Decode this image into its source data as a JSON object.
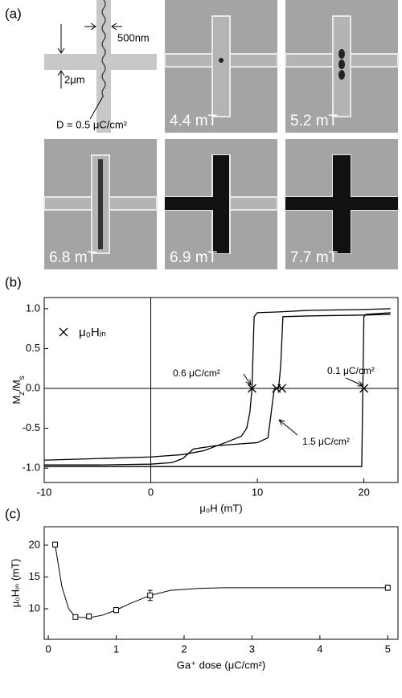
{
  "panel_a": {
    "label": "(a)",
    "width_label": "500nm",
    "spacing_label": "2μm",
    "dose_label": "D = 0.5 μC/cm²",
    "images": [
      "4.4 mT",
      "5.2 mT",
      "6.8 mT",
      "6.9 mT",
      "7.7 mT"
    ]
  },
  "chart_data": [
    {
      "type": "line",
      "title": "(b)",
      "xlabel": "μ₀H (mT)",
      "ylabel": [
        "M",
        "z",
        "/M",
        "s"
      ],
      "xlim": [
        -10,
        23.2
      ],
      "ylim": [
        -1.18,
        1.14
      ],
      "xticks": [
        -10,
        0,
        10,
        20
      ],
      "yticks": [
        {
          "value": -1,
          "label": "-1.0"
        },
        {
          "value": -0.5,
          "label": "-0.5"
        },
        {
          "value": 0,
          "label": "0.0"
        },
        {
          "value": 0.5,
          "label": "0.5"
        },
        {
          "value": 1,
          "label": "1.0"
        }
      ],
      "series": [
        {
          "name": "0.6 μC/cm²",
          "color": "#000000",
          "x": [
            -10,
            -5,
            0,
            3,
            5,
            7,
            8.5,
            9,
            9.3,
            9.5,
            9.7,
            10,
            12,
            15,
            20,
            22.5
          ],
          "values": [
            -0.9,
            -0.88,
            -0.86,
            -0.83,
            -0.78,
            -0.68,
            -0.6,
            -0.5,
            -0.3,
            0,
            0.9,
            0.95,
            0.96,
            0.98,
            0.99,
            1.0
          ]
        },
        {
          "name": "1.5 μC/cm²",
          "color": "#000000",
          "x": [
            -10,
            -5,
            0,
            2,
            3,
            4,
            6,
            8,
            10,
            11,
            11.4,
            11.6,
            12,
            12.2,
            12.4,
            15,
            20,
            22.5
          ],
          "values": [
            -0.96,
            -0.96,
            -0.95,
            -0.93,
            -0.88,
            -0.76,
            -0.72,
            -0.7,
            -0.68,
            -0.62,
            -0.2,
            0,
            0,
            0.3,
            0.9,
            0.91,
            0.92,
            0.93
          ]
        },
        {
          "name": "0.1 μC/cm²",
          "color": "#000000",
          "x": [
            -10,
            0,
            10,
            19.8,
            19.9,
            20,
            20.2,
            22.5
          ],
          "values": [
            -0.98,
            -0.98,
            -0.98,
            -0.98,
            0,
            0.9,
            0.93,
            0.95
          ]
        }
      ],
      "markers": {
        "name": "μ₀Hᵢₙ",
        "x": [
          9.5,
          11.8,
          12.3,
          20
        ],
        "values": [
          0,
          0,
          0,
          0
        ]
      }
    },
    {
      "type": "scatter",
      "title": "(c)",
      "xlabel": "Ga⁺ dose (μC/cm²)",
      "ylabel": "μ₀Hᵢₙ (mT)",
      "xlim": [
        -0.06,
        5.15
      ],
      "ylim": [
        5.2,
        22.9
      ],
      "xticks": [
        0,
        1,
        2,
        3,
        4,
        5
      ],
      "yticks": [
        10,
        15,
        20
      ],
      "x": [
        0.1,
        0.4,
        0.6,
        1.0,
        1.5,
        5.0
      ],
      "values": [
        20.1,
        8.7,
        8.8,
        9.8,
        12.1,
        13.3
      ],
      "errors": [
        0.3,
        0.2,
        0.4,
        0.4,
        0.8,
        0.4
      ],
      "fit": {
        "x": [
          0.1,
          0.2,
          0.3,
          0.4,
          0.6,
          0.8,
          1.0,
          1.2,
          1.5,
          1.8,
          2.2,
          2.6,
          3.5,
          5.0
        ],
        "values": [
          20.1,
          13.5,
          10.0,
          8.7,
          8.6,
          9.0,
          9.8,
          10.8,
          12.1,
          12.9,
          13.2,
          13.3,
          13.3,
          13.3
        ]
      }
    }
  ]
}
